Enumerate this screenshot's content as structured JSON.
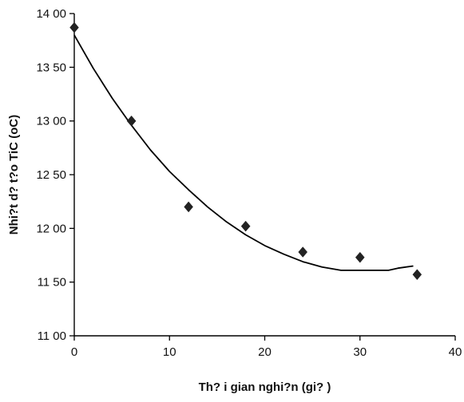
{
  "chart_data": {
    "type": "scatter",
    "xlabel": "Th? i gian nghi?n (gi? )",
    "ylabel": "Nhi?t d? t?o TiC (oC)",
    "xlim": [
      0,
      40
    ],
    "ylim": [
      1100,
      1400
    ],
    "x_ticks": [
      0,
      10,
      20,
      30,
      40
    ],
    "y_ticks": [
      1100,
      1150,
      1200,
      1250,
      1300,
      1350,
      1400
    ],
    "x_tick_labels": [
      "0",
      "10",
      "20",
      "30",
      "40"
    ],
    "y_tick_labels": [
      "11 00",
      "11 50",
      "12 00",
      "12 50",
      "13 00",
      "13 50",
      "14 00"
    ],
    "grid": false,
    "series": [
      {
        "marker": "diamond",
        "x": [
          0,
          6,
          12,
          18,
          24,
          30,
          36
        ],
        "y": [
          1387,
          1300,
          1220,
          1202,
          1178,
          1173,
          1157
        ]
      }
    ],
    "trendline": {
      "x": [
        0,
        2,
        4,
        6,
        8,
        10,
        12,
        14,
        16,
        18,
        20,
        22,
        24,
        26,
        28,
        30,
        32,
        33,
        34,
        35.6
      ],
      "y": [
        1380,
        1349,
        1321,
        1296,
        1273,
        1253,
        1236,
        1220,
        1206,
        1194,
        1184,
        1176,
        1169,
        1164,
        1161,
        1161,
        1161,
        1161,
        1163,
        1165
      ]
    },
    "colors": {
      "marker": "#222222",
      "line": "#000000",
      "axis": "#000000"
    }
  }
}
